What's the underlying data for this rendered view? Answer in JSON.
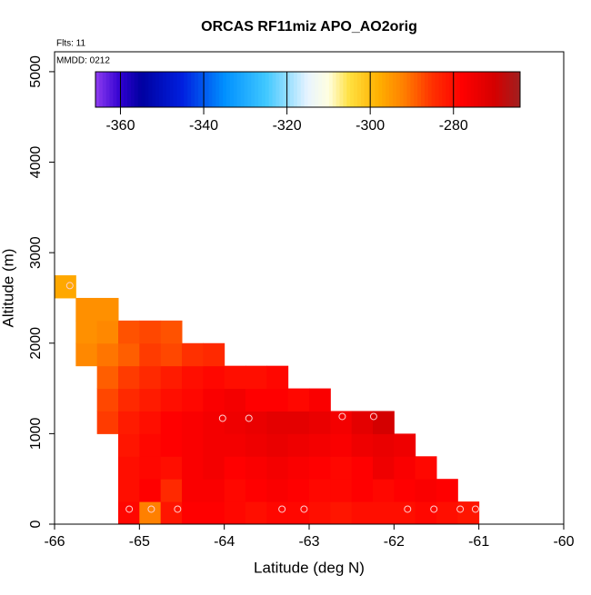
{
  "chart_data": {
    "type": "heatmap",
    "title": "ORCAS RF11miz APO_AO2orig",
    "flights_label": "Flts: 11",
    "date_label": "MMDD: 0212",
    "x_label": "Latitude (deg N)",
    "y_label": "Altitude (m)",
    "xlim": [
      -66,
      -60
    ],
    "xticks": [
      -66,
      -65,
      -64,
      -63,
      -62,
      -61,
      -60
    ],
    "ylim": [
      0,
      5220
    ],
    "yticks": [
      0,
      1000,
      2000,
      3000,
      4000,
      5000
    ],
    "cell_size": [
      0.25,
      250
    ],
    "rows": [
      {
        "alt": 0,
        "lat": [
          -65.25,
          -65,
          -64.75,
          -64.5,
          -64.25,
          -64,
          -63.75,
          -63.5,
          -63.25,
          -63,
          -62.75,
          -62.5,
          -62.25,
          -62,
          -61.75,
          -61.5,
          -61.25
        ],
        "values": [
          -279,
          -292,
          -281,
          -278,
          -278,
          -279,
          -280,
          -279,
          -279,
          -280,
          -281,
          -280,
          -280,
          -280,
          -279,
          -280,
          -281
        ]
      },
      {
        "alt": 250,
        "lat": [
          -65.25,
          -65,
          -64.75,
          -64.5,
          -64.25,
          -64,
          -63.75,
          -63.5,
          -63.25,
          -63,
          -62.75,
          -62.5,
          -62.25,
          -62,
          -61.75,
          -61.5
        ],
        "values": [
          -280,
          -278,
          -284,
          -277,
          -277,
          -279,
          -278,
          -277,
          -278,
          -279,
          -279,
          -278,
          -279,
          -278,
          -277,
          -278
        ]
      },
      {
        "alt": 500,
        "lat": [
          -65.25,
          -65,
          -64.75,
          -64.5,
          -64.25,
          -64,
          -63.75,
          -63.5,
          -63.25,
          -63,
          -62.75,
          -62.5,
          -62.25,
          -62,
          -61.75
        ],
        "values": [
          -280,
          -279,
          -280,
          -277,
          -276,
          -278,
          -277,
          -276,
          -277,
          -278,
          -279,
          -278,
          -275,
          -277,
          -279
        ]
      },
      {
        "alt": 750,
        "lat": [
          -65.25,
          -65,
          -64.75,
          -64.5,
          -64.25,
          -64,
          -63.75,
          -63.5,
          -63.25,
          -63,
          -62.75,
          -62.5,
          -62.25,
          -62
        ],
        "values": [
          -281,
          -279,
          -278,
          -277,
          -276,
          -276,
          -275,
          -274,
          -275,
          -276,
          -277,
          -275,
          -274,
          -275
        ]
      },
      {
        "alt": 1000,
        "lat": [
          -65.5,
          -65.25,
          -65,
          -64.75,
          -64.5,
          -64.25,
          -64,
          -63.75,
          -63.5,
          -63.25,
          -63,
          -62.75,
          -62.5,
          -62.25
        ],
        "values": [
          -286,
          -282,
          -280,
          -278,
          -277,
          -276,
          -275,
          -274,
          -273,
          -273,
          -274,
          -276,
          -273,
          -270
        ]
      },
      {
        "alt": 1250,
        "lat": [
          -65.5,
          -65.25,
          -65,
          -64.75,
          -64.5,
          -64.25,
          -64,
          -63.75,
          -63.5,
          -63.25,
          -63
        ],
        "values": [
          -287,
          -284,
          -282,
          -280,
          -279,
          -277,
          -276,
          -278,
          -278,
          -279,
          -277
        ]
      },
      {
        "alt": 1500,
        "lat": [
          -65.5,
          -65.25,
          -65,
          -64.75,
          -64.5,
          -64.25,
          -64,
          -63.75,
          -63.5
        ],
        "values": [
          -289,
          -286,
          -284,
          -282,
          -280,
          -279,
          -280,
          -280,
          -279
        ]
      },
      {
        "alt": 1750,
        "lat": [
          -65.75,
          -65.5,
          -65.25,
          -65,
          -64.75,
          -64.5,
          -64.25
        ],
        "values": [
          -293,
          -291,
          -289,
          -286,
          -287,
          -285,
          -284
        ]
      },
      {
        "alt": 2000,
        "lat": [
          -65.75,
          -65.5,
          -65.25,
          -65,
          -64.75
        ],
        "values": [
          -294,
          -293,
          -288,
          -287,
          -288
        ]
      },
      {
        "alt": 2250,
        "lat": [
          -65.75,
          -65.5
        ],
        "values": [
          -294,
          -294
        ]
      },
      {
        "alt": 2500,
        "lat": [
          -66
        ],
        "values": [
          -297
        ]
      }
    ],
    "points": {
      "lat": [
        -65.82,
        -65.12,
        -64.86,
        -64.55,
        -64.02,
        -63.71,
        -63.32,
        -63.06,
        -62.61,
        -62.24,
        -61.84,
        -61.53,
        -61.22,
        -61.04
      ],
      "alt": [
        2636,
        166,
        166,
        166,
        1170,
        1170,
        166,
        166,
        1190,
        1190,
        166,
        166,
        166,
        166
      ]
    },
    "colorbar": {
      "lim": [
        -366,
        -264
      ],
      "ticks": [
        -360,
        -340,
        -320,
        -300,
        -280
      ]
    },
    "colorscale": [
      [
        -366,
        "#8f3cf0"
      ],
      [
        -360,
        "#3000d0"
      ],
      [
        -355,
        "#0000a0"
      ],
      [
        -345,
        "#0020e0"
      ],
      [
        -335,
        "#0090ff"
      ],
      [
        -325,
        "#40c8ff"
      ],
      [
        -315,
        "#e8f4ff"
      ],
      [
        -310,
        "#ffffe0"
      ],
      [
        -305,
        "#ffe040"
      ],
      [
        -298,
        "#ffb000"
      ],
      [
        -292,
        "#ff8000"
      ],
      [
        -285,
        "#ff3000"
      ],
      [
        -278,
        "#ff0000"
      ],
      [
        -270,
        "#d40000"
      ],
      [
        -264,
        "#a02020"
      ]
    ]
  }
}
